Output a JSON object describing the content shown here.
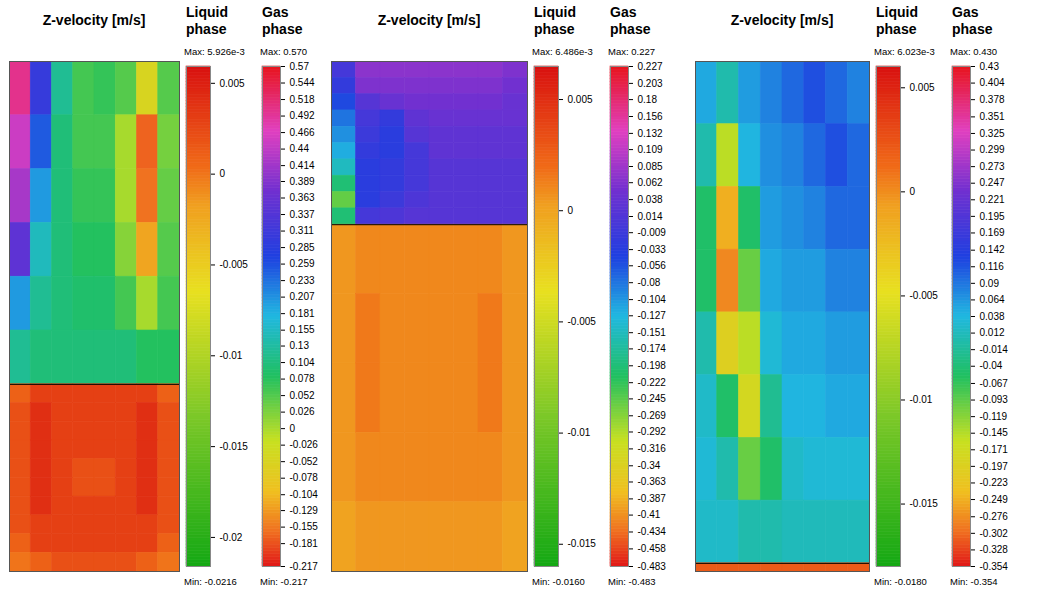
{
  "chart_data": [
    {
      "type": "heatmap",
      "title": "Z-velocity [m/s]",
      "interface_level": 0.367,
      "liquid_phase": {
        "label": "Liquid phase",
        "max_label": "Max: 5.926e-3",
        "min_label": "Min: -0.0216",
        "range": [
          -0.0216,
          0.005926
        ],
        "ticks": [
          0.005,
          0,
          -0.005,
          -0.01,
          -0.015,
          -0.02
        ],
        "cells": [
          [
            0.001,
            0.003,
            0.003,
            0.003,
            0.003,
            0.003,
            0.003,
            0.001
          ],
          [
            0.002,
            0.004,
            0.003,
            0.003,
            0.003,
            0.003,
            0.004,
            0.002
          ],
          [
            0.002,
            0.004,
            0.003,
            0.003,
            0.003,
            0.003,
            0.004,
            0.002
          ],
          [
            0.002,
            0.004,
            0.003,
            0.003,
            0.003,
            0.003,
            0.004,
            0.002
          ],
          [
            0.002,
            0.004,
            0.003,
            0.002,
            0.002,
            0.003,
            0.004,
            0.002
          ],
          [
            0.002,
            0.004,
            0.003,
            0.002,
            0.002,
            0.003,
            0.004,
            0.002
          ],
          [
            0.002,
            0.004,
            0.003,
            0.003,
            0.003,
            0.003,
            0.004,
            0.002
          ],
          [
            0.002,
            0.003,
            0.003,
            0.003,
            0.003,
            0.003,
            0.003,
            0.002
          ],
          [
            0.001,
            0.003,
            0.003,
            0.003,
            0.003,
            0.003,
            0.003,
            0.001
          ],
          [
            0,
            0.001,
            0.002,
            0.002,
            0.002,
            0.002,
            0.001,
            0
          ]
        ]
      },
      "gas_phase": {
        "label": "Gas phase",
        "max_label": "Max: 0.570",
        "min_label": "Min: -0.217",
        "range": [
          -0.217,
          0.57
        ],
        "ticks": [
          0.57,
          0.544,
          0.518,
          0.492,
          0.466,
          0.44,
          0.414,
          0.389,
          0.363,
          0.337,
          0.311,
          0.285,
          0.259,
          0.233,
          0.207,
          0.181,
          0.155,
          0.13,
          0.104,
          0.078,
          0.052,
          0.026,
          0,
          -0.026,
          -0.052,
          -0.078,
          -0.104,
          -0.129,
          -0.155,
          -0.181,
          -0.217
        ],
        "cells": [
          [
            0.5,
            0.3,
            0.12,
            0.06,
            0.07,
            0.05,
            -0.05,
            0.05
          ],
          [
            0.45,
            0.25,
            0.1,
            0.06,
            0.06,
            0,
            -0.17,
            0.03
          ],
          [
            0.42,
            0.2,
            0.1,
            0.07,
            0.07,
            0,
            -0.16,
            0.04
          ],
          [
            0.35,
            0.15,
            0.1,
            0.08,
            0.08,
            0.02,
            -0.12,
            0.05
          ],
          [
            0.2,
            0.12,
            0.1,
            0.09,
            0.09,
            0.06,
            0,
            0.06
          ],
          [
            0.12,
            0.1,
            0.1,
            0.1,
            0.1,
            0.1,
            0.08,
            0.08
          ]
        ]
      }
    },
    {
      "type": "heatmap",
      "title": "Z-velocity [m/s]",
      "interface_level": 0.68,
      "liquid_phase": {
        "label": "Liquid phase",
        "max_label": "Max: 6.486e-3",
        "min_label": "Min: -0.0160",
        "range": [
          -0.016,
          0.006486
        ],
        "ticks": [
          0.005,
          0,
          -0.005,
          -0.01,
          -0.015
        ],
        "cells": [
          [
            0.0005,
            0.001,
            0.001,
            0.001,
            0.001,
            0.001,
            0.001,
            0.0005
          ],
          [
            0.0005,
            0.0015,
            0.001,
            0.001,
            0.001,
            0.001,
            0.0015,
            0.0005
          ],
          [
            0.0005,
            0.0015,
            0.001,
            0.001,
            0.001,
            0.001,
            0.0015,
            0.0005
          ],
          [
            0.0005,
            0.001,
            0.001,
            0.001,
            0.001,
            0.001,
            0.001,
            0.0005
          ],
          [
            0,
            0.0005,
            0.0005,
            0.0005,
            0.0005,
            0.0005,
            0.0005,
            0
          ]
        ]
      },
      "gas_phase": {
        "label": "Gas phase",
        "max_label": "Max: 0.227",
        "min_label": "Min: -0.483",
        "range": [
          -0.483,
          0.227
        ],
        "ticks": [
          0.227,
          0.203,
          0.18,
          0.156,
          0.132,
          0.109,
          0.085,
          0.062,
          0.038,
          0.014,
          -0.009,
          -0.033,
          -0.056,
          -0.08,
          -0.104,
          -0.127,
          -0.151,
          -0.174,
          -0.198,
          -0.222,
          -0.245,
          -0.269,
          -0.292,
          -0.316,
          -0.34,
          -0.363,
          -0.387,
          -0.41,
          -0.434,
          -0.458,
          -0.483
        ],
        "cells": [
          [
            0,
            0.07,
            0.07,
            0.07,
            0.07,
            0.07,
            0.07,
            0.06
          ],
          [
            -0.02,
            0.06,
            0.06,
            0.06,
            0.06,
            0.06,
            0.06,
            0.05
          ],
          [
            -0.05,
            0.02,
            0.04,
            0.05,
            0.05,
            0.05,
            0.05,
            0.04
          ],
          [
            -0.08,
            0,
            -0.02,
            0.03,
            0.04,
            0.04,
            0.04,
            0.04
          ],
          [
            -0.1,
            -0.01,
            -0.03,
            0.02,
            0.03,
            0.03,
            0.03,
            0.03
          ],
          [
            -0.12,
            -0.02,
            -0.03,
            0,
            0.03,
            0.03,
            0.03,
            0.03
          ],
          [
            -0.15,
            -0.03,
            -0.02,
            0,
            0.02,
            0.02,
            0.02,
            0.02
          ],
          [
            -0.2,
            -0.03,
            -0.02,
            0,
            0.02,
            0.02,
            0.02,
            0.02
          ],
          [
            -0.25,
            -0.03,
            -0.01,
            0.01,
            0.02,
            0.02,
            0.02,
            0.02
          ],
          [
            -0.2,
            0,
            0.01,
            0.02,
            0.02,
            0.02,
            0.02,
            0.02
          ]
        ]
      }
    },
    {
      "type": "heatmap",
      "title": "Z-velocity [m/s]",
      "interface_level": 0.016,
      "liquid_phase": {
        "label": "Liquid phase",
        "max_label": "Max: 6.023e-3",
        "min_label": "Min: -0.0180",
        "range": [
          -0.018,
          0.006023
        ],
        "ticks": [
          0.005,
          0,
          -0.005,
          -0.01,
          -0.015
        ],
        "cells": [
          [
            0.002,
            0.002,
            0.002,
            0.002,
            0.002,
            0.002,
            0.002,
            0.002
          ]
        ]
      },
      "gas_phase": {
        "label": "Gas phase",
        "max_label": "Max: 0.430",
        "min_label": "Min: -0.354",
        "range": [
          -0.354,
          0.43
        ],
        "ticks": [
          0.43,
          0.404,
          0.378,
          0.351,
          0.325,
          0.299,
          0.273,
          0.247,
          0.221,
          0.195,
          0.169,
          0.142,
          0.116,
          0.09,
          0.064,
          0.038,
          0.012,
          -0.014,
          -0.04,
          -0.067,
          -0.093,
          -0.119,
          -0.145,
          -0.171,
          -0.197,
          -0.223,
          -0.249,
          -0.276,
          -0.302,
          -0.328,
          -0.354
        ],
        "cells": [
          [
            0.05,
            0,
            0.06,
            0.08,
            0.1,
            0.12,
            0.1,
            0.08
          ],
          [
            0,
            -0.15,
            0.04,
            0.07,
            0.08,
            0.1,
            0.12,
            0.1
          ],
          [
            -0.05,
            -0.25,
            -0.05,
            0.06,
            0.07,
            0.08,
            0.1,
            0.1
          ],
          [
            -0.05,
            -0.28,
            -0.1,
            0.05,
            0.06,
            0.06,
            0.08,
            0.08
          ],
          [
            0,
            -0.2,
            -0.15,
            0.03,
            0.05,
            0.05,
            0.06,
            0.06
          ],
          [
            0.02,
            -0.05,
            -0.18,
            -0.02,
            0.04,
            0.04,
            0.05,
            0.05
          ],
          [
            0.03,
            0,
            -0.1,
            -0.05,
            0.02,
            0.03,
            0.03,
            0.03
          ],
          [
            0.02,
            0.02,
            0,
            0,
            0.01,
            0.01,
            0.01,
            0.01
          ]
        ]
      }
    }
  ]
}
